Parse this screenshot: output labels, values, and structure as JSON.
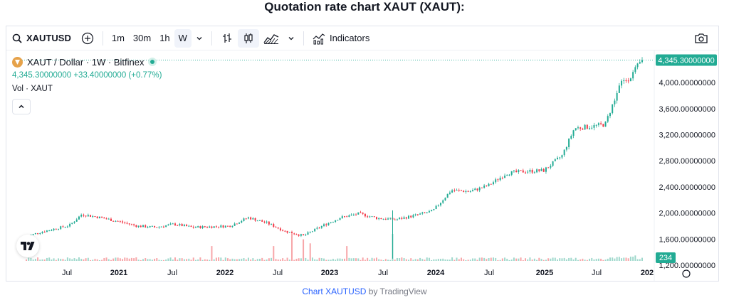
{
  "page": {
    "title": "Quotation rate chart XAUT (XAUT):"
  },
  "toolbar": {
    "symbol": "XAUTUSD",
    "intervals": [
      "1m",
      "30m",
      "1h",
      "W"
    ],
    "active_interval": "W",
    "indicators_label": "Indicators",
    "icons": [
      "search-icon",
      "add-symbol-icon",
      "chevron-down-icon",
      "bar-style-icon",
      "candles-icon",
      "area-chart-icon",
      "indicators-icon",
      "camera-icon"
    ]
  },
  "legend": {
    "pair": "XAUT / Dollar · 1W · Bitfinex",
    "last_price": "4,345.30000000",
    "change": "+33.40000000",
    "change_pct": "(+0.77%)",
    "volume_label": "Vol · XAUT"
  },
  "price_badge": "4,345.30000000",
  "volume_badge": "234",
  "colors": {
    "up": "#22ab94",
    "down": "#f23645",
    "up_volume": "#9fd8cc",
    "down_volume": "#f7a6a9",
    "badge": "#22ab94",
    "link": "#2962ff"
  },
  "chart_data": {
    "type": "candlestick",
    "symbol": "XAUTUSD",
    "interval": "1W",
    "y_ticks": [
      "4,000.00000000",
      "3,600.00000000",
      "3,200.00000000",
      "2,800.00000000",
      "2,400.00000000",
      "2,000.00000000",
      "1,600.00000000",
      "1,200.00000000"
    ],
    "y_tick_values": [
      4000,
      3600,
      3200,
      2800,
      2400,
      2000,
      1600,
      1200
    ],
    "x_ticks": [
      "Jul",
      "2021",
      "Jul",
      "2022",
      "Jul",
      "2023",
      "Jul",
      "2024",
      "Jul",
      "2025",
      "Jul",
      "202"
    ],
    "ylim": [
      1200,
      4470
    ],
    "last_close": 4345.3,
    "anchors": [
      {
        "t": 0.0,
        "v": 1640
      },
      {
        "t": 0.02,
        "v": 1700
      },
      {
        "t": 0.07,
        "v": 1810
      },
      {
        "t": 0.09,
        "v": 1980
      },
      {
        "t": 0.12,
        "v": 1930
      },
      {
        "t": 0.15,
        "v": 1870
      },
      {
        "t": 0.18,
        "v": 1800
      },
      {
        "t": 0.21,
        "v": 1780
      },
      {
        "t": 0.24,
        "v": 1830
      },
      {
        "t": 0.27,
        "v": 1780
      },
      {
        "t": 0.3,
        "v": 1790
      },
      {
        "t": 0.33,
        "v": 1800
      },
      {
        "t": 0.36,
        "v": 1930
      },
      {
        "t": 0.39,
        "v": 1850
      },
      {
        "t": 0.42,
        "v": 1720
      },
      {
        "t": 0.45,
        "v": 1650
      },
      {
        "t": 0.48,
        "v": 1800
      },
      {
        "t": 0.51,
        "v": 1930
      },
      {
        "t": 0.54,
        "v": 1990
      },
      {
        "t": 0.57,
        "v": 1920
      },
      {
        "t": 0.6,
        "v": 1900
      },
      {
        "t": 0.63,
        "v": 1960
      },
      {
        "t": 0.66,
        "v": 2030
      },
      {
        "t": 0.69,
        "v": 2350
      },
      {
        "t": 0.72,
        "v": 2330
      },
      {
        "t": 0.75,
        "v": 2420
      },
      {
        "t": 0.78,
        "v": 2610
      },
      {
        "t": 0.81,
        "v": 2640
      },
      {
        "t": 0.84,
        "v": 2650
      },
      {
        "t": 0.87,
        "v": 2880
      },
      {
        "t": 0.89,
        "v": 3300
      },
      {
        "t": 0.92,
        "v": 3330
      },
      {
        "t": 0.94,
        "v": 3360
      },
      {
        "t": 0.965,
        "v": 3990
      },
      {
        "t": 0.98,
        "v": 4080
      },
      {
        "t": 1.0,
        "v": 4345
      }
    ],
    "volume_spikes": [
      {
        "t": 0.3,
        "v": 0.55,
        "dir": "down"
      },
      {
        "t": 0.4,
        "v": 0.55,
        "dir": "down"
      },
      {
        "t": 0.43,
        "v": 1.0,
        "dir": "down"
      },
      {
        "t": 0.45,
        "v": 0.8,
        "dir": "down"
      },
      {
        "t": 0.46,
        "v": 0.65,
        "dir": "down"
      },
      {
        "t": 0.52,
        "v": 0.55,
        "dir": "down"
      },
      {
        "t": 0.593,
        "v": 1.0,
        "dir": "up"
      }
    ]
  },
  "footer": {
    "link": "Chart XAUTUSD",
    "by": "by TradingView"
  }
}
